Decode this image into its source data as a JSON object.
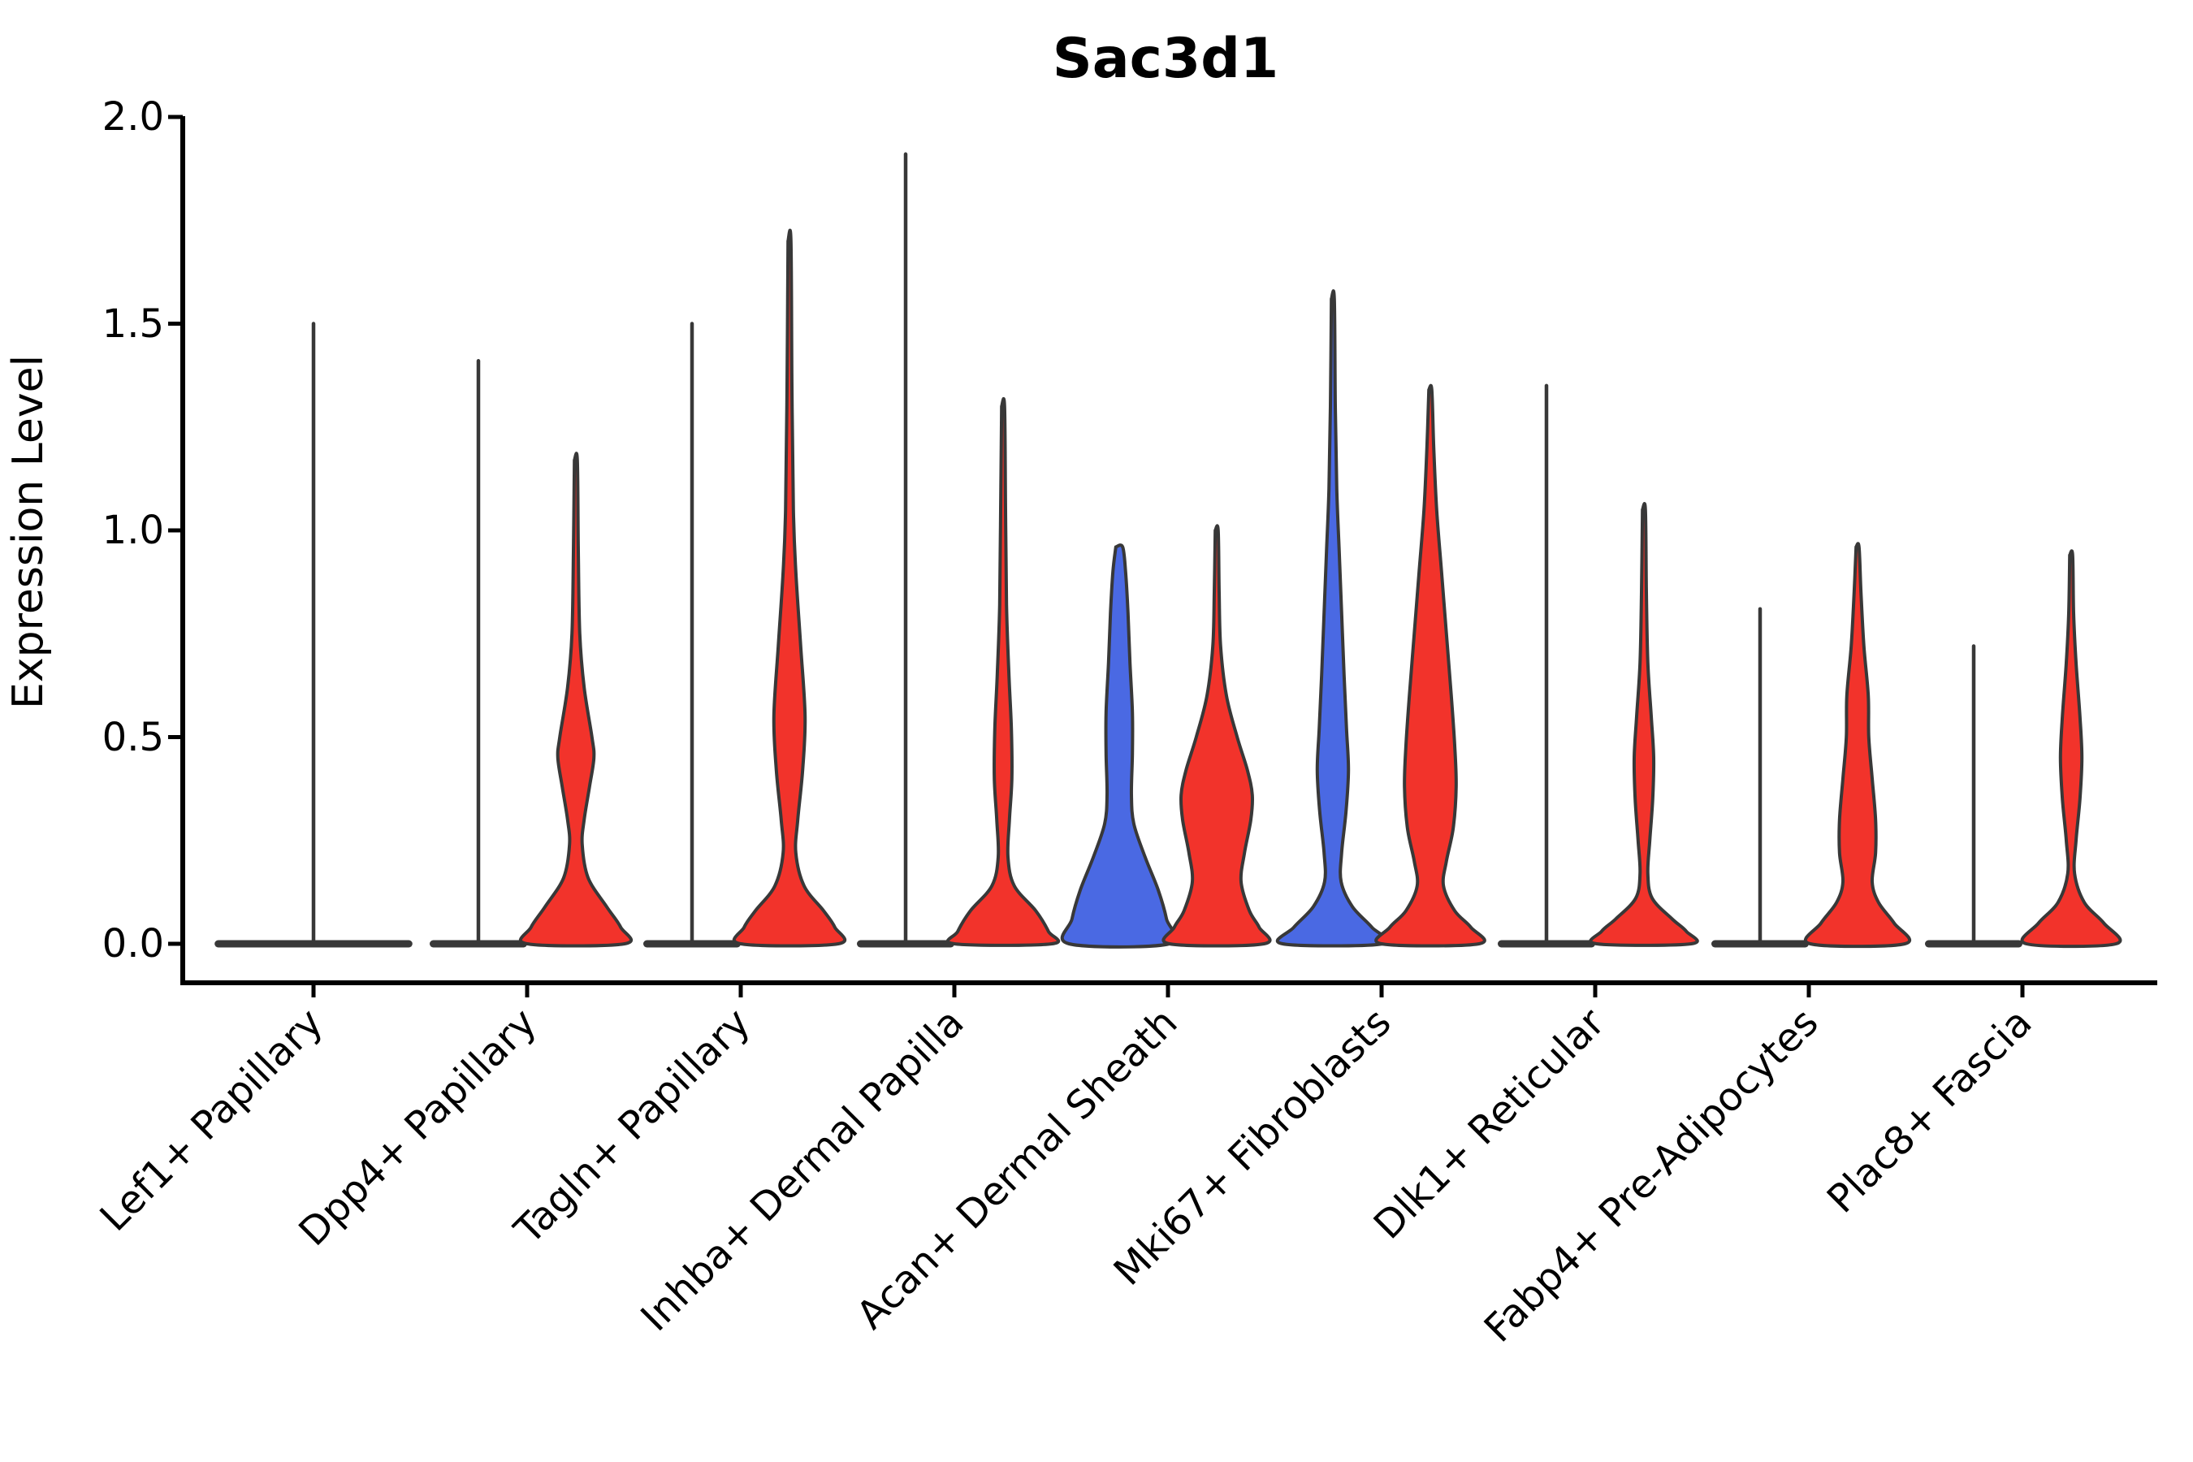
{
  "chart_data": {
    "type": "violin",
    "title": "Sac3d1",
    "ylabel": "Expression Level",
    "xlabel": "",
    "ylim": [
      0,
      2.0
    ],
    "yticks": [
      "0.0",
      "0.5",
      "1.0",
      "1.5",
      "2.0"
    ],
    "grid": false,
    "legend": "none",
    "colors": {
      "red": "#F2332B",
      "blue": "#4A69E3",
      "edge": "#383838",
      "axis": "#000000"
    },
    "categories": [
      {
        "label": "Lef1+ Papillary",
        "violins": [
          {
            "position": "single",
            "style": "flat",
            "color": "edge",
            "max_expression": 1.5,
            "width_scale": 2.03
          }
        ]
      },
      {
        "label": "Dpp4+ Papillary",
        "violins": [
          {
            "position": "left",
            "style": "flat",
            "color": "edge",
            "max_expression": 1.41,
            "width_scale": 1.0
          },
          {
            "position": "right",
            "style": "body",
            "color": "red",
            "max_expression": 1.17,
            "width_scale": 1.0,
            "profile": [
              [
                1.17,
                0.03
              ],
              [
                0.95,
                0.05
              ],
              [
                0.75,
                0.08
              ],
              [
                0.62,
                0.17
              ],
              [
                0.5,
                0.33
              ],
              [
                0.45,
                0.37
              ],
              [
                0.38,
                0.28
              ],
              [
                0.3,
                0.17
              ],
              [
                0.24,
                0.13
              ],
              [
                0.16,
                0.25
              ],
              [
                0.09,
                0.63
              ],
              [
                0.04,
                0.92
              ],
              [
                0,
                1.0
              ]
            ]
          }
        ]
      },
      {
        "label": "Tagln+ Papillary",
        "violins": [
          {
            "position": "left",
            "style": "flat",
            "color": "edge",
            "max_expression": 1.5,
            "width_scale": 1.0
          },
          {
            "position": "right",
            "style": "body",
            "color": "red",
            "max_expression": 1.7,
            "width_scale": 1.0,
            "profile": [
              [
                1.7,
                0.03
              ],
              [
                1.35,
                0.05
              ],
              [
                1.05,
                0.08
              ],
              [
                0.9,
                0.13
              ],
              [
                0.72,
                0.23
              ],
              [
                0.55,
                0.32
              ],
              [
                0.42,
                0.27
              ],
              [
                0.3,
                0.17
              ],
              [
                0.22,
                0.13
              ],
              [
                0.14,
                0.3
              ],
              [
                0.08,
                0.7
              ],
              [
                0.04,
                0.93
              ],
              [
                0,
                1.0
              ]
            ]
          }
        ]
      },
      {
        "label": "Inhba+ Dermal Papilla",
        "violins": [
          {
            "position": "left",
            "style": "flat",
            "color": "edge",
            "max_expression": 1.91,
            "width_scale": 1.0
          },
          {
            "position": "right",
            "style": "body",
            "color": "red",
            "max_expression": 1.3,
            "width_scale": 1.0,
            "profile": [
              [
                1.3,
                0.03
              ],
              [
                1.05,
                0.05
              ],
              [
                0.82,
                0.07
              ],
              [
                0.65,
                0.12
              ],
              [
                0.52,
                0.17
              ],
              [
                0.4,
                0.18
              ],
              [
                0.3,
                0.13
              ],
              [
                0.21,
                0.1
              ],
              [
                0.14,
                0.23
              ],
              [
                0.08,
                0.67
              ],
              [
                0.03,
                0.93
              ],
              [
                0,
                1.0
              ]
            ]
          }
        ]
      },
      {
        "label": "Acan+ Dermal Sheath",
        "violins": [
          {
            "position": "left",
            "style": "body",
            "color": "blue",
            "max_expression": 0.96,
            "width_scale": 1.0,
            "profile": [
              [
                0.96,
                0.07
              ],
              [
                0.9,
                0.13
              ],
              [
                0.8,
                0.18
              ],
              [
                0.68,
                0.22
              ],
              [
                0.56,
                0.27
              ],
              [
                0.46,
                0.27
              ],
              [
                0.36,
                0.25
              ],
              [
                0.29,
                0.3
              ],
              [
                0.21,
                0.53
              ],
              [
                0.13,
                0.8
              ],
              [
                0.06,
                0.97
              ],
              [
                0,
                1.03
              ]
            ]
          },
          {
            "position": "right",
            "style": "body",
            "color": "red",
            "max_expression": 1.0,
            "width_scale": 1.0,
            "profile": [
              [
                1.0,
                0.03
              ],
              [
                0.85,
                0.05
              ],
              [
                0.72,
                0.08
              ],
              [
                0.6,
                0.2
              ],
              [
                0.5,
                0.42
              ],
              [
                0.42,
                0.63
              ],
              [
                0.36,
                0.73
              ],
              [
                0.3,
                0.7
              ],
              [
                0.22,
                0.57
              ],
              [
                0.15,
                0.5
              ],
              [
                0.08,
                0.67
              ],
              [
                0.04,
                0.87
              ],
              [
                0,
                0.97
              ]
            ]
          }
        ]
      },
      {
        "label": "Mki67+ Fibroblasts",
        "violins": [
          {
            "position": "left",
            "style": "body",
            "color": "blue",
            "max_expression": 1.56,
            "width_scale": 1.0,
            "profile": [
              [
                1.56,
                0.03
              ],
              [
                1.3,
                0.05
              ],
              [
                1.1,
                0.08
              ],
              [
                0.95,
                0.13
              ],
              [
                0.8,
                0.18
              ],
              [
                0.65,
                0.23
              ],
              [
                0.52,
                0.28
              ],
              [
                0.42,
                0.32
              ],
              [
                0.32,
                0.27
              ],
              [
                0.22,
                0.18
              ],
              [
                0.15,
                0.17
              ],
              [
                0.09,
                0.4
              ],
              [
                0.04,
                0.8
              ],
              [
                0,
                1.03
              ]
            ]
          },
          {
            "position": "right",
            "style": "body",
            "color": "red",
            "max_expression": 1.34,
            "width_scale": 1.0,
            "profile": [
              [
                1.34,
                0.03
              ],
              [
                1.2,
                0.07
              ],
              [
                1.05,
                0.13
              ],
              [
                0.9,
                0.23
              ],
              [
                0.75,
                0.33
              ],
              [
                0.6,
                0.43
              ],
              [
                0.48,
                0.5
              ],
              [
                0.38,
                0.53
              ],
              [
                0.28,
                0.47
              ],
              [
                0.2,
                0.33
              ],
              [
                0.14,
                0.27
              ],
              [
                0.08,
                0.5
              ],
              [
                0.04,
                0.83
              ],
              [
                0,
                1.0
              ]
            ]
          }
        ]
      },
      {
        "label": "Dlk1+ Reticular",
        "violins": [
          {
            "position": "left",
            "style": "flat",
            "color": "edge",
            "max_expression": 1.35,
            "width_scale": 1.0
          },
          {
            "position": "right",
            "style": "body",
            "color": "red",
            "max_expression": 1.05,
            "width_scale": 1.0,
            "profile": [
              [
                1.05,
                0.03
              ],
              [
                0.85,
                0.05
              ],
              [
                0.68,
                0.08
              ],
              [
                0.55,
                0.15
              ],
              [
                0.45,
                0.2
              ],
              [
                0.35,
                0.18
              ],
              [
                0.25,
                0.12
              ],
              [
                0.17,
                0.08
              ],
              [
                0.11,
                0.17
              ],
              [
                0.06,
                0.58
              ],
              [
                0.03,
                0.87
              ],
              [
                0,
                0.97
              ]
            ]
          }
        ]
      },
      {
        "label": "Fabp4+ Pre-Adipocytes",
        "violins": [
          {
            "position": "left",
            "style": "flat",
            "color": "edge",
            "max_expression": 0.81,
            "width_scale": 1.0
          },
          {
            "position": "right",
            "style": "body",
            "color": "red",
            "max_expression": 0.96,
            "width_scale": 1.0,
            "profile": [
              [
                0.96,
                0.03
              ],
              [
                0.85,
                0.07
              ],
              [
                0.72,
                0.13
              ],
              [
                0.6,
                0.22
              ],
              [
                0.5,
                0.23
              ],
              [
                0.4,
                0.3
              ],
              [
                0.3,
                0.37
              ],
              [
                0.22,
                0.37
              ],
              [
                0.15,
                0.3
              ],
              [
                0.1,
                0.43
              ],
              [
                0.05,
                0.75
              ],
              [
                0,
                0.97
              ]
            ]
          }
        ]
      },
      {
        "label": "Plac8+ Fascia",
        "violins": [
          {
            "position": "left",
            "style": "flat",
            "color": "edge",
            "max_expression": 0.72,
            "width_scale": 1.0
          },
          {
            "position": "right",
            "style": "body",
            "color": "red",
            "max_expression": 0.94,
            "width_scale": 1.0,
            "profile": [
              [
                0.94,
                0.03
              ],
              [
                0.8,
                0.05
              ],
              [
                0.68,
                0.1
              ],
              [
                0.55,
                0.18
              ],
              [
                0.45,
                0.22
              ],
              [
                0.35,
                0.18
              ],
              [
                0.25,
                0.1
              ],
              [
                0.17,
                0.07
              ],
              [
                0.1,
                0.27
              ],
              [
                0.05,
                0.67
              ],
              [
                0,
                0.92
              ]
            ]
          }
        ]
      }
    ]
  }
}
